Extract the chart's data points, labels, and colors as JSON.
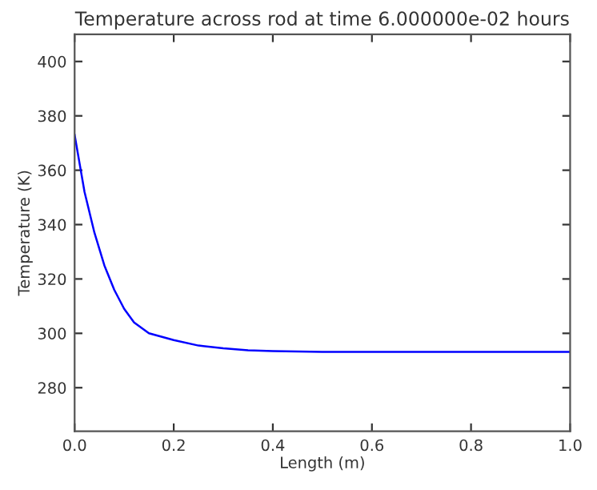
{
  "chart_data": {
    "type": "line",
    "title": "Temperature across rod at time 6.000000e-02 hours",
    "xlabel": "Length (m)",
    "ylabel": "Temperature (K)",
    "x": [
      0,
      0.02,
      0.04,
      0.06,
      0.08,
      0.1,
      0.12,
      0.15,
      0.2,
      0.25,
      0.3,
      0.35,
      0.4,
      0.5,
      0.6,
      0.8,
      1.0
    ],
    "series": [
      {
        "color": "#0000ff",
        "values": [
          373,
          352,
          337,
          325,
          316,
          309,
          304,
          300,
          297.5,
          295.5,
          294.5,
          293.8,
          293.5,
          293.2,
          293.2,
          293.2,
          293.2
        ]
      }
    ],
    "xlim": [
      0,
      1
    ],
    "xticks": [
      {
        "value": 0,
        "label": "0.0"
      },
      0.2,
      0.4,
      0.6,
      0.8,
      {
        "value": 1,
        "label": "1.0"
      }
    ],
    "ylim": [
      264,
      410
    ],
    "yticks": [
      280,
      300,
      320,
      340,
      360,
      380,
      400
    ],
    "grid": false,
    "marker": "none",
    "line_style": "solid"
  }
}
